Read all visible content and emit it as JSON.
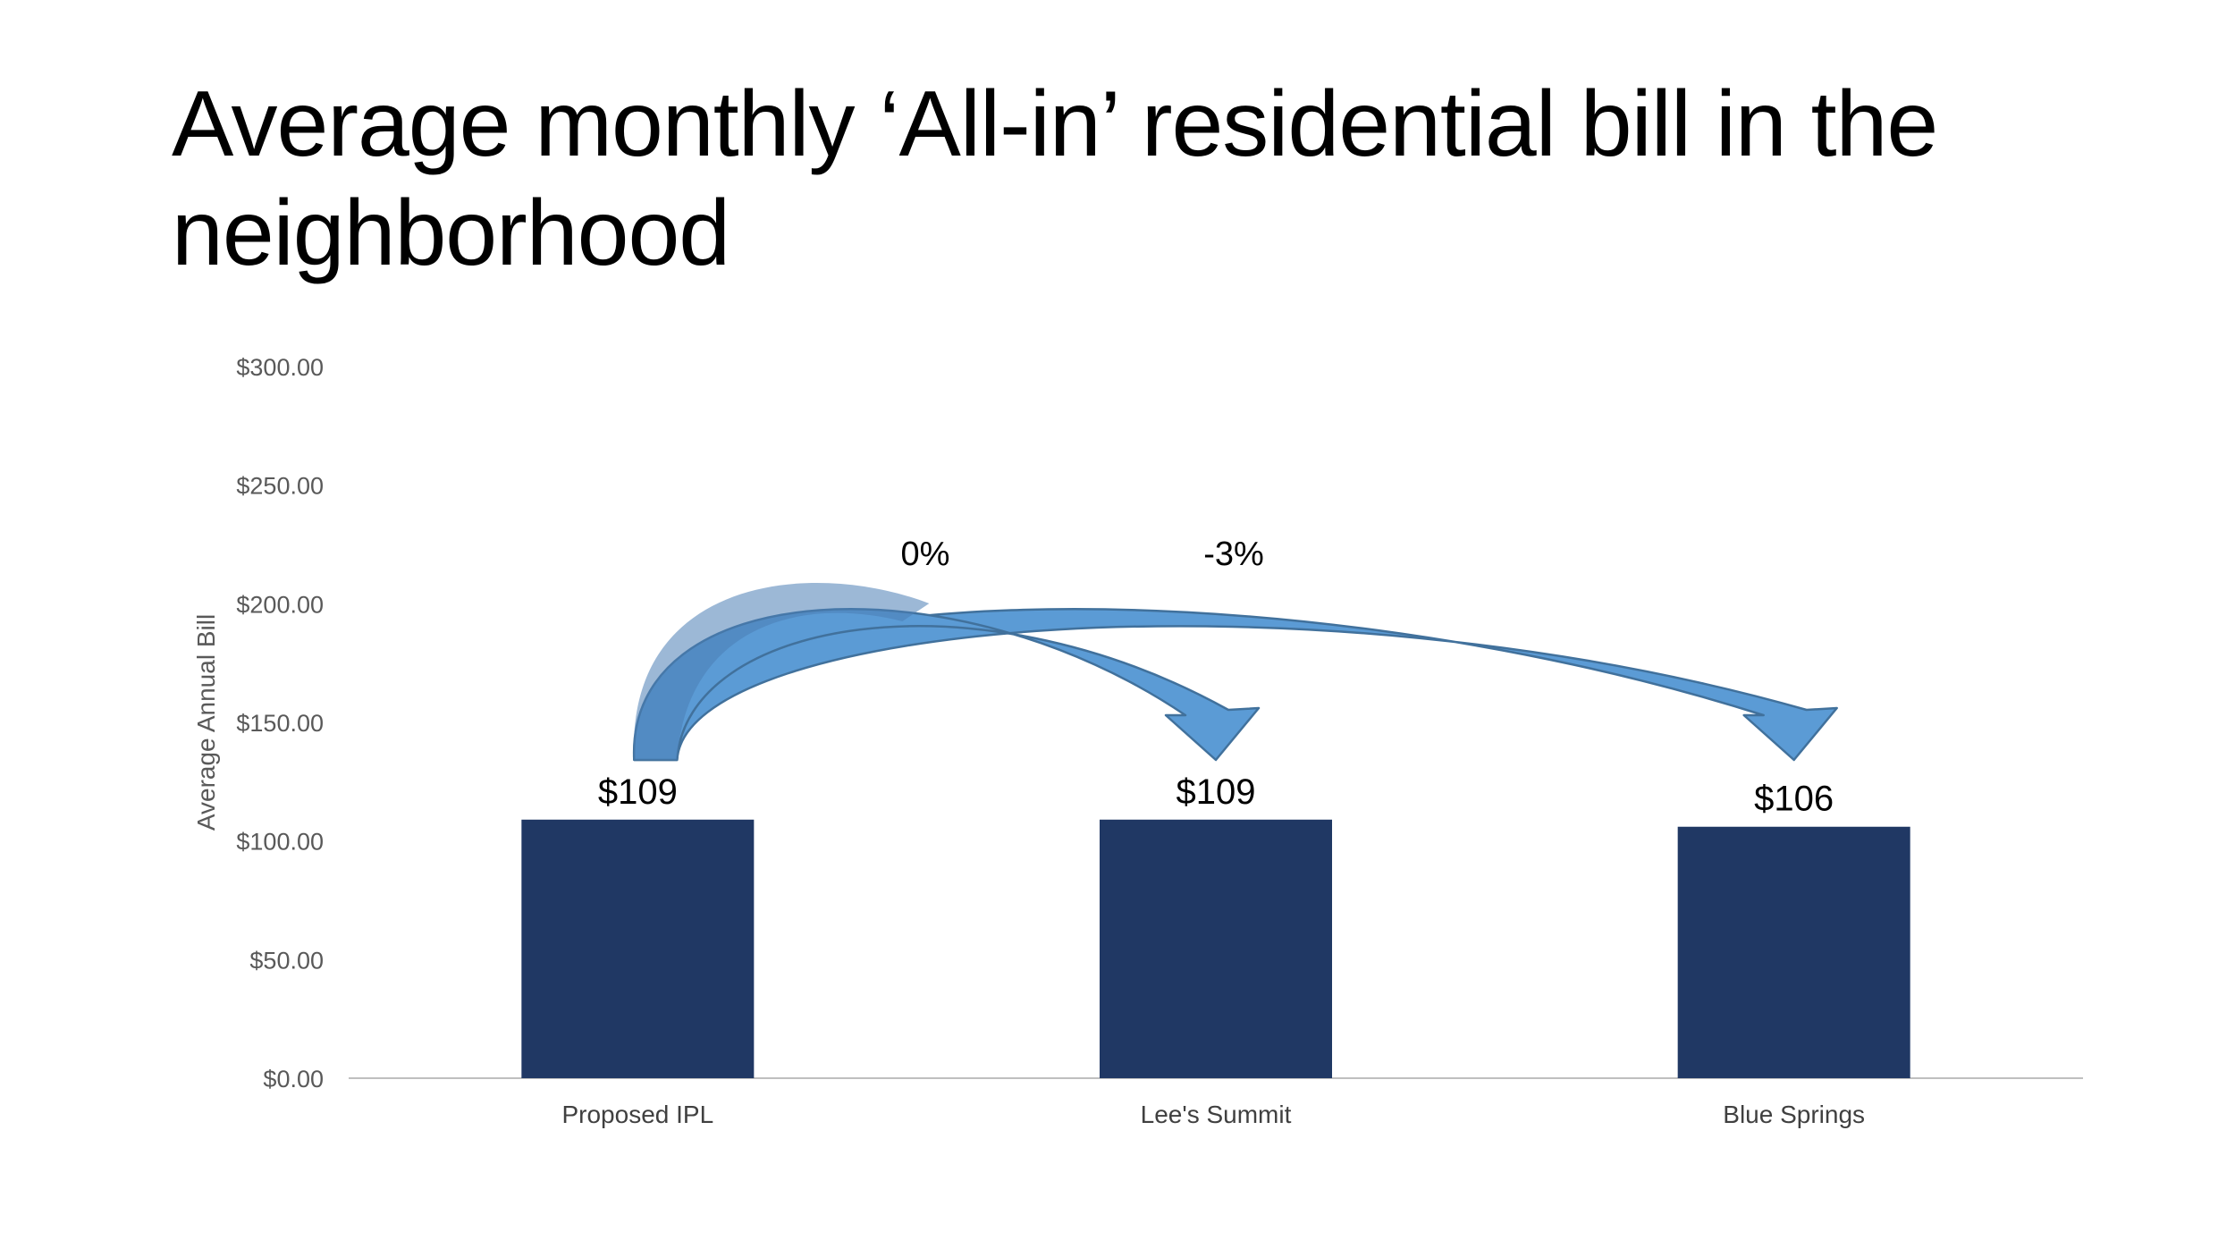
{
  "title": "Average monthly ‘All-in’ residential bill in the neighborhood",
  "chart_data": {
    "type": "bar",
    "categories": [
      "Proposed IPL",
      "Lee's Summit",
      "Blue Springs"
    ],
    "values": [
      109,
      109,
      106
    ],
    "data_labels": [
      "$109",
      "$109",
      "$106"
    ],
    "ylabel": "Average Annual Bill",
    "ylim": [
      0,
      300
    ],
    "yticks": [
      0,
      50,
      100,
      150,
      200,
      250,
      300
    ],
    "ytick_labels": [
      "$0.00",
      "$50.00",
      "$100.00",
      "$150.00",
      "$200.00",
      "$250.00",
      "$300.00"
    ],
    "grid": false,
    "bar_color": "#203864",
    "annotations": [
      {
        "from": "Proposed IPL",
        "to": "Lee's Summit",
        "label": "0%"
      },
      {
        "from": "Proposed IPL",
        "to": "Blue Springs",
        "label": "-3%"
      }
    ],
    "arrow_colors": {
      "fill": "#5B9BD5",
      "dark": "#4A7EB5",
      "stroke": "#41719C"
    }
  }
}
